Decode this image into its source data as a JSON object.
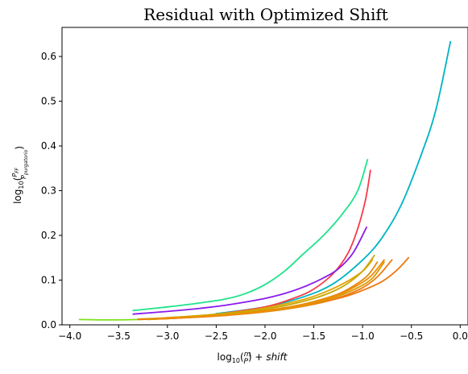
{
  "chart_data": {
    "type": "line",
    "title": "Residual with Optimized Shift",
    "xlabel": "log10(m/P) + shift",
    "ylabel": "log10(P_FF / P_purgatorio)",
    "xlim": [
      -4.08,
      0.08
    ],
    "ylim": [
      0.0,
      0.665
    ],
    "xticks": [
      -4.0,
      -3.5,
      -3.0,
      -2.5,
      -2.0,
      -1.5,
      -1.0,
      -0.5,
      0.0
    ],
    "xtick_labels": [
      "−4.0",
      "−3.5",
      "−3.0",
      "−2.5",
      "−2.0",
      "−1.5",
      "−1.0",
      "−0.5",
      "0.0"
    ],
    "yticks": [
      0.0,
      0.1,
      0.2,
      0.3,
      0.4,
      0.5,
      0.6
    ],
    "ytick_labels": [
      "0.0",
      "0.1",
      "0.2",
      "0.3",
      "0.4",
      "0.5",
      "0.6"
    ],
    "grid": false,
    "legend": false,
    "series": [
      {
        "color": "#00b3c4",
        "x": [
          -2.5,
          -2.0,
          -1.6,
          -1.3,
          -1.0,
          -0.8,
          -0.6,
          -0.4,
          -0.25,
          -0.1
        ],
        "y": [
          0.025,
          0.04,
          0.063,
          0.092,
          0.145,
          0.195,
          0.27,
          0.38,
          0.48,
          0.633
        ]
      },
      {
        "color": "#1ee38a",
        "x": [
          -3.35,
          -3.0,
          -2.7,
          -2.4,
          -2.2,
          -2.0,
          -1.8,
          -1.6,
          -1.4,
          -1.2,
          -1.05,
          -0.95
        ],
        "y": [
          0.032,
          0.04,
          0.048,
          0.058,
          0.07,
          0.09,
          0.12,
          0.16,
          0.2,
          0.25,
          0.3,
          0.369
        ]
      },
      {
        "color": "#f53c4a",
        "x": [
          -2.45,
          -2.0,
          -1.7,
          -1.5,
          -1.3,
          -1.15,
          -1.05,
          -0.97,
          -0.92
        ],
        "y": [
          0.025,
          0.04,
          0.06,
          0.08,
          0.115,
          0.16,
          0.215,
          0.28,
          0.345
        ]
      },
      {
        "color": "#8a1aed",
        "x": [
          -3.35,
          -3.0,
          -2.7,
          -2.4,
          -2.2,
          -2.0,
          -1.8,
          -1.6,
          -1.4,
          -1.25,
          -1.1,
          -0.96
        ],
        "y": [
          0.024,
          0.03,
          0.036,
          0.044,
          0.051,
          0.059,
          0.07,
          0.085,
          0.105,
          0.125,
          0.16,
          0.218
        ]
      },
      {
        "color": "#7fe01a",
        "x": [
          -3.9,
          -3.6,
          -3.3,
          -3.0,
          -2.7,
          -2.4,
          -2.1,
          -1.8,
          -1.5
        ],
        "y": [
          0.012,
          0.011,
          0.012,
          0.014,
          0.018,
          0.023,
          0.029,
          0.037,
          0.047
        ]
      },
      {
        "color": "#e0a400",
        "x": [
          -3.3,
          -3.0,
          -2.6,
          -2.2,
          -1.9,
          -1.6,
          -1.4,
          -1.2,
          -1.0,
          -0.9
        ],
        "y": [
          0.013,
          0.016,
          0.022,
          0.031,
          0.042,
          0.057,
          0.072,
          0.092,
          0.12,
          0.145
        ]
      },
      {
        "color": "#ed7a12",
        "x": [
          -3.3,
          -2.9,
          -2.5,
          -2.1,
          -1.8,
          -1.5,
          -1.2,
          -1.0,
          -0.8,
          -0.65,
          -0.53
        ],
        "y": [
          0.012,
          0.015,
          0.02,
          0.027,
          0.036,
          0.047,
          0.062,
          0.077,
          0.097,
          0.122,
          0.15
        ]
      },
      {
        "color": "#ed7a12",
        "x": [
          -3.2,
          -2.8,
          -2.4,
          -2.0,
          -1.7,
          -1.4,
          -1.2,
          -1.0,
          -0.85,
          -0.7
        ],
        "y": [
          0.012,
          0.016,
          0.021,
          0.029,
          0.038,
          0.051,
          0.064,
          0.083,
          0.107,
          0.145
        ]
      },
      {
        "color": "#d89a00",
        "x": [
          -3.2,
          -2.8,
          -2.4,
          -2.0,
          -1.7,
          -1.45,
          -1.25,
          -1.05,
          -0.9,
          -0.78
        ],
        "y": [
          0.013,
          0.017,
          0.022,
          0.03,
          0.039,
          0.051,
          0.064,
          0.083,
          0.104,
          0.14
        ]
      },
      {
        "color": "#e08a10",
        "x": [
          -3.1,
          -2.7,
          -2.3,
          -2.0,
          -1.7,
          -1.45,
          -1.25,
          -1.1,
          -0.95,
          -0.85
        ],
        "y": [
          0.014,
          0.018,
          0.024,
          0.032,
          0.042,
          0.055,
          0.069,
          0.086,
          0.11,
          0.14
        ]
      },
      {
        "color": "#c8a800",
        "x": [
          -3.0,
          -2.6,
          -2.3,
          -2.0,
          -1.75,
          -1.5,
          -1.3,
          -1.15,
          -1.0,
          -0.88
        ],
        "y": [
          0.016,
          0.021,
          0.027,
          0.035,
          0.045,
          0.059,
          0.075,
          0.093,
          0.12,
          0.155
        ]
      },
      {
        "color": "#f08c00",
        "x": [
          -3.1,
          -2.7,
          -2.3,
          -2.0,
          -1.7,
          -1.45,
          -1.25,
          -1.08,
          -0.92,
          -0.78
        ],
        "y": [
          0.014,
          0.018,
          0.024,
          0.031,
          0.041,
          0.053,
          0.067,
          0.085,
          0.108,
          0.145
        ]
      }
    ]
  }
}
